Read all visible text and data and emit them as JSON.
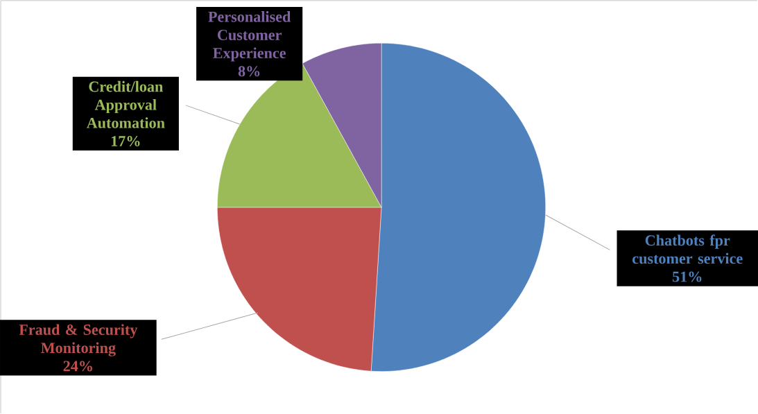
{
  "chart_data": {
    "type": "pie",
    "categories": [
      "Chatbots fpr customer service",
      "Fraud & Security Monitoring",
      "Credit/loan Approval Automation",
      "Personalised Customer Experience"
    ],
    "values": [
      51,
      24,
      17,
      8
    ],
    "value_labels": [
      "51%",
      "24%",
      "17%",
      "8%"
    ],
    "colors": [
      "#4f81bd",
      "#c0504d",
      "#9bbb59",
      "#8064a2"
    ]
  }
}
